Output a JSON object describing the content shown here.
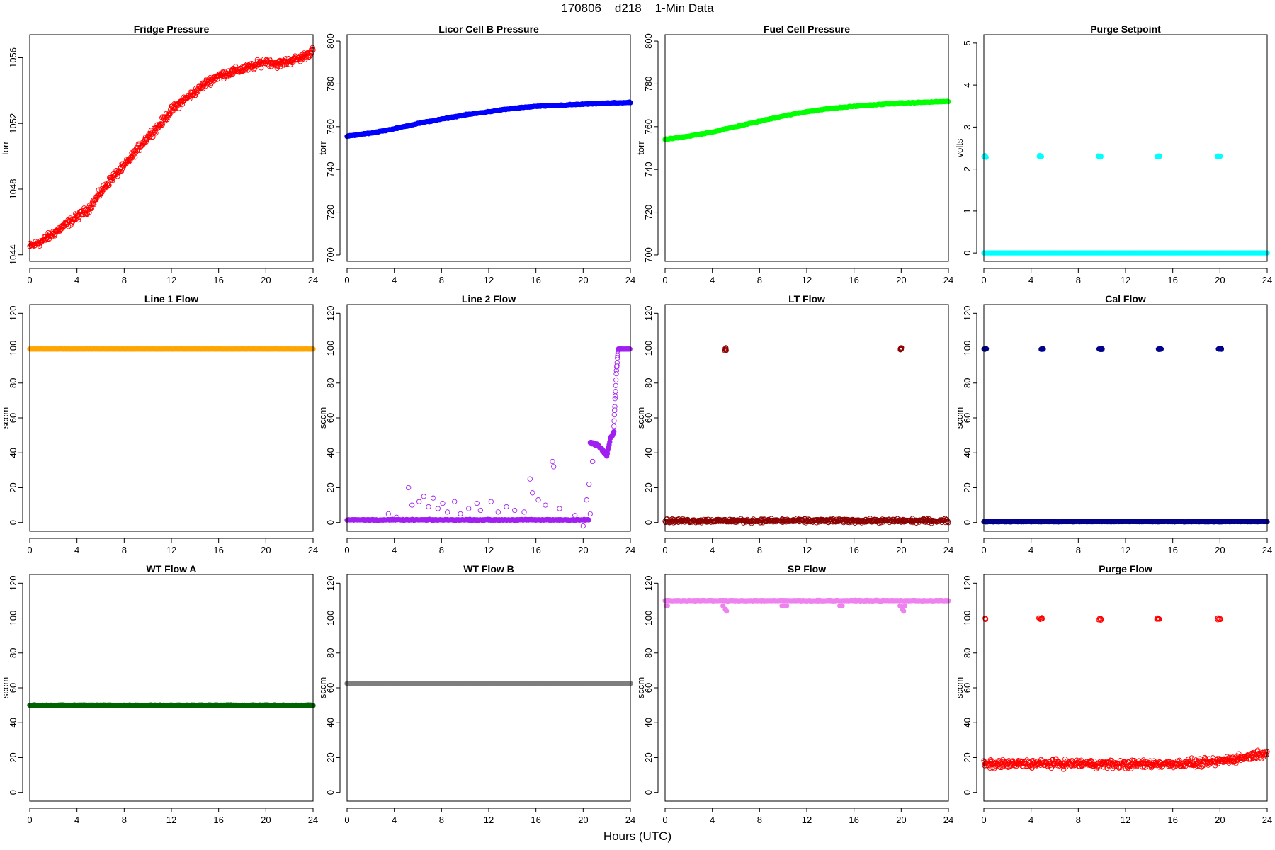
{
  "figure": {
    "title": "170806    d218    1-Min Data",
    "xlabel": "Hours (UTC)"
  },
  "chart_data": [
    {
      "type": "scatter",
      "title": "Fridge Pressure",
      "ylabel": "torr",
      "color": "#ff0000",
      "xlim": [
        0,
        24
      ],
      "ylim": [
        1043.6,
        1057.4
      ],
      "xticks": [
        0,
        4,
        8,
        12,
        16,
        20,
        24
      ],
      "yticks": [
        1044,
        1048,
        1052,
        1056
      ],
      "groups": [
        {
          "kind": "curve",
          "points": [
            [
              0,
              1044.5
            ],
            [
              1,
              1044.8
            ],
            [
              2,
              1045.3
            ],
            [
              3,
              1045.8
            ],
            [
              4,
              1046.3
            ],
            [
              5,
              1046.8
            ],
            [
              6,
              1047.8
            ],
            [
              7,
              1048.7
            ],
            [
              8,
              1049.4
            ],
            [
              9,
              1050.3
            ],
            [
              10,
              1051.2
            ],
            [
              11,
              1051.9
            ],
            [
              12,
              1052.8
            ],
            [
              13,
              1053.4
            ],
            [
              14,
              1053.9
            ],
            [
              15,
              1054.5
            ],
            [
              16,
              1054.9
            ],
            [
              17,
              1055.1
            ],
            [
              18,
              1055.3
            ],
            [
              19,
              1055.5
            ],
            [
              20,
              1055.8
            ],
            [
              21,
              1055.6
            ],
            [
              22,
              1055.8
            ],
            [
              23,
              1056.0
            ],
            [
              24,
              1056.4
            ]
          ],
          "noise": 0.35,
          "open": true,
          "step": 0.04
        }
      ]
    },
    {
      "type": "scatter",
      "title": "Licor Cell B Pressure",
      "ylabel": "torr",
      "color": "#0000ff",
      "xlim": [
        0,
        24
      ],
      "ylim": [
        697,
        803
      ],
      "xticks": [
        0,
        4,
        8,
        12,
        16,
        20,
        24
      ],
      "yticks": [
        700,
        720,
        740,
        760,
        780,
        800
      ],
      "groups": [
        {
          "kind": "curve",
          "points": [
            [
              0,
              755.5
            ],
            [
              2,
              757
            ],
            [
              4,
              759
            ],
            [
              6,
              761.5
            ],
            [
              8,
              763.5
            ],
            [
              10,
              765.5
            ],
            [
              12,
              767
            ],
            [
              14,
              768.5
            ],
            [
              16,
              769.5
            ],
            [
              18,
              770
            ],
            [
              20,
              770.5
            ],
            [
              22,
              771
            ],
            [
              24,
              771.3
            ]
          ],
          "noise": 0.3,
          "open": false,
          "step": 0.08
        }
      ]
    },
    {
      "type": "scatter",
      "title": "Fuel Cell Pressure",
      "ylabel": "torr",
      "color": "#00ff00",
      "xlim": [
        0,
        24
      ],
      "ylim": [
        697,
        803
      ],
      "xticks": [
        0,
        4,
        8,
        12,
        16,
        20,
        24
      ],
      "yticks": [
        700,
        720,
        740,
        760,
        780,
        800
      ],
      "groups": [
        {
          "kind": "curve",
          "points": [
            [
              0,
              754
            ],
            [
              2,
              755.5
            ],
            [
              4,
              757.5
            ],
            [
              6,
              760
            ],
            [
              8,
              762.5
            ],
            [
              10,
              765
            ],
            [
              12,
              767
            ],
            [
              14,
              768.5
            ],
            [
              16,
              769.5
            ],
            [
              18,
              770.3
            ],
            [
              20,
              771
            ],
            [
              22,
              771.4
            ],
            [
              24,
              771.8
            ]
          ],
          "noise": 0.3,
          "open": false,
          "step": 0.08
        }
      ]
    },
    {
      "type": "scatter",
      "title": "Purge Setpoint",
      "ylabel": "volts",
      "color": "#00ffff",
      "xlim": [
        0,
        24
      ],
      "ylim": [
        -0.2,
        5.2
      ],
      "xticks": [
        0,
        4,
        8,
        12,
        16,
        20,
        24
      ],
      "yticks": [
        0,
        1,
        2,
        3,
        4,
        5
      ],
      "groups": [
        {
          "kind": "curve",
          "points": [
            [
              0,
              0
            ],
            [
              24,
              0
            ]
          ],
          "noise": 0.0,
          "open": false,
          "step": 0.08
        },
        {
          "kind": "cluster",
          "x": [
            0.1,
            4.8,
            9.8,
            14.8,
            19.9
          ],
          "y": 2.3,
          "spread": 0.25,
          "noise": 0.03,
          "open": false
        }
      ]
    },
    {
      "type": "scatter",
      "title": "Line 1 Flow",
      "ylabel": "sccm",
      "color": "#ffa500",
      "xlim": [
        0,
        24
      ],
      "ylim": [
        -5,
        125
      ],
      "xticks": [
        0,
        4,
        8,
        12,
        16,
        20,
        24
      ],
      "yticks": [
        0,
        20,
        40,
        60,
        80,
        100,
        120
      ],
      "groups": [
        {
          "kind": "curve",
          "points": [
            [
              0,
              99.5
            ],
            [
              24,
              99.5
            ]
          ],
          "noise": 0.05,
          "open": false,
          "step": 0.08
        }
      ]
    },
    {
      "type": "scatter",
      "title": "Line 2 Flow",
      "ylabel": "sccm",
      "color": "#a020f0",
      "xlim": [
        0,
        24
      ],
      "ylim": [
        -5,
        125
      ],
      "xticks": [
        0,
        4,
        8,
        12,
        16,
        20,
        24
      ],
      "yticks": [
        0,
        20,
        40,
        60,
        80,
        100,
        120
      ],
      "groups": [
        {
          "kind": "curve",
          "points": [
            [
              0,
              1.5
            ],
            [
              20.5,
              1.5
            ]
          ],
          "noise": 0.4,
          "open": false,
          "step": 0.08
        },
        {
          "kind": "curve",
          "points": [
            [
              20.6,
              46
            ],
            [
              21.3,
              44
            ],
            [
              21.8,
              40
            ],
            [
              22.0,
              38
            ],
            [
              22.3,
              48
            ],
            [
              22.6,
              52
            ]
          ],
          "noise": 1.0,
          "open": false,
          "step": 0.05
        },
        {
          "kind": "curve",
          "points": [
            [
              22.6,
              55
            ],
            [
              22.7,
              70
            ],
            [
              22.8,
              85
            ],
            [
              22.9,
              95
            ],
            [
              23.0,
              99.5
            ]
          ],
          "noise": 2.0,
          "open": true,
          "step": 0.02
        },
        {
          "kind": "curve",
          "points": [
            [
              23.0,
              99.5
            ],
            [
              24,
              99.5
            ]
          ],
          "noise": 0.1,
          "open": false,
          "step": 0.05
        },
        {
          "kind": "points",
          "values": [
            [
              3.5,
              5
            ],
            [
              4.2,
              3
            ],
            [
              5.2,
              20
            ],
            [
              5.5,
              10
            ],
            [
              6.1,
              12
            ],
            [
              6.5,
              15
            ],
            [
              6.9,
              9
            ],
            [
              7.3,
              14
            ],
            [
              7.7,
              8
            ],
            [
              8.1,
              11
            ],
            [
              8.5,
              6
            ],
            [
              9.1,
              12
            ],
            [
              9.6,
              5
            ],
            [
              10.3,
              8
            ],
            [
              11.0,
              11
            ],
            [
              11.3,
              7
            ],
            [
              12.2,
              12
            ],
            [
              12.8,
              6
            ],
            [
              13.5,
              9
            ],
            [
              14.2,
              7
            ],
            [
              15.0,
              6
            ],
            [
              15.5,
              25
            ],
            [
              15.7,
              17
            ],
            [
              16.2,
              13
            ],
            [
              16.8,
              10
            ],
            [
              17.4,
              35
            ],
            [
              17.5,
              32
            ],
            [
              18.0,
              8
            ],
            [
              19.3,
              4
            ],
            [
              20.0,
              -2
            ],
            [
              20.3,
              13
            ],
            [
              20.5,
              22
            ],
            [
              20.6,
              5
            ],
            [
              20.8,
              35
            ]
          ],
          "open": true
        }
      ]
    },
    {
      "type": "scatter",
      "title": "LT Flow",
      "ylabel": "sccm",
      "color": "#8b0000",
      "xlim": [
        0,
        24
      ],
      "ylim": [
        -5,
        125
      ],
      "xticks": [
        0,
        4,
        8,
        12,
        16,
        20,
        24
      ],
      "yticks": [
        0,
        20,
        40,
        60,
        80,
        100,
        120
      ],
      "groups": [
        {
          "kind": "curve",
          "points": [
            [
              0,
              1
            ],
            [
              24,
              1
            ]
          ],
          "noise": 1.6,
          "open": true,
          "step": 0.04
        },
        {
          "kind": "cluster",
          "x": [
            5.1,
            20.0
          ],
          "y": 99.5,
          "spread": 0.15,
          "noise": 1.5,
          "open": true
        }
      ]
    },
    {
      "type": "scatter",
      "title": "Cal Flow",
      "ylabel": "sccm",
      "color": "#00008b",
      "xlim": [
        0,
        24
      ],
      "ylim": [
        -5,
        125
      ],
      "xticks": [
        0,
        4,
        8,
        12,
        16,
        20,
        24
      ],
      "yticks": [
        0,
        20,
        40,
        60,
        80,
        100,
        120
      ],
      "groups": [
        {
          "kind": "curve",
          "points": [
            [
              0,
              0.5
            ],
            [
              24,
              0.5
            ]
          ],
          "noise": 0.2,
          "open": false,
          "step": 0.08
        },
        {
          "kind": "cluster",
          "x": [
            0.1,
            4.9,
            9.9,
            14.9,
            20.0
          ],
          "y": 99.5,
          "spread": 0.3,
          "noise": 0.3,
          "open": false
        }
      ]
    },
    {
      "type": "scatter",
      "title": "WT Flow A",
      "ylabel": "sccm",
      "color": "#006400",
      "xlim": [
        0,
        24
      ],
      "ylim": [
        -5,
        125
      ],
      "xticks": [
        0,
        4,
        8,
        12,
        16,
        20,
        24
      ],
      "yticks": [
        0,
        20,
        40,
        60,
        80,
        100,
        120
      ],
      "groups": [
        {
          "kind": "curve",
          "points": [
            [
              0,
              50
            ],
            [
              24,
              50
            ]
          ],
          "noise": 0.3,
          "open": false,
          "step": 0.06
        }
      ]
    },
    {
      "type": "scatter",
      "title": "WT Flow B",
      "ylabel": "sccm",
      "color": "#7f7f7f",
      "xlim": [
        0,
        24
      ],
      "ylim": [
        -5,
        125
      ],
      "xticks": [
        0,
        4,
        8,
        12,
        16,
        20,
        24
      ],
      "yticks": [
        0,
        20,
        40,
        60,
        80,
        100,
        120
      ],
      "groups": [
        {
          "kind": "curve",
          "points": [
            [
              0,
              62.5
            ],
            [
              24,
              62.5
            ]
          ],
          "noise": 0.05,
          "open": false,
          "step": 0.08
        }
      ]
    },
    {
      "type": "scatter",
      "title": "SP Flow",
      "ylabel": "sccm",
      "color": "#ee82ee",
      "xlim": [
        0,
        24
      ],
      "ylim": [
        -5,
        125
      ],
      "xticks": [
        0,
        4,
        8,
        12,
        16,
        20,
        24
      ],
      "yticks": [
        0,
        20,
        40,
        60,
        80,
        100,
        120
      ],
      "groups": [
        {
          "kind": "curve",
          "points": [
            [
              0,
              110
            ],
            [
              24,
              110
            ]
          ],
          "noise": 0.3,
          "open": false,
          "step": 0.08
        },
        {
          "kind": "points",
          "values": [
            [
              0.1,
              107
            ],
            [
              0.2,
              107
            ],
            [
              4.9,
              107
            ],
            [
              5.1,
              105
            ],
            [
              5.2,
              104
            ],
            [
              9.9,
              107
            ],
            [
              10.1,
              107
            ],
            [
              10.3,
              107
            ],
            [
              14.8,
              107
            ],
            [
              15.0,
              107
            ],
            [
              19.9,
              107
            ],
            [
              20.1,
              105
            ],
            [
              20.2,
              104
            ],
            [
              20.3,
              107
            ]
          ],
          "open": false
        }
      ]
    },
    {
      "type": "scatter",
      "title": "Purge Flow",
      "ylabel": "sccm",
      "color": "#ff0000",
      "xlim": [
        0,
        24
      ],
      "ylim": [
        -5,
        125
      ],
      "xticks": [
        0,
        4,
        8,
        12,
        16,
        20,
        24
      ],
      "yticks": [
        0,
        20,
        40,
        60,
        80,
        100,
        120
      ],
      "groups": [
        {
          "kind": "curve",
          "points": [
            [
              0,
              16
            ],
            [
              4,
              16.5
            ],
            [
              8,
              16.5
            ],
            [
              12,
              16
            ],
            [
              16,
              16.5
            ],
            [
              19,
              17
            ],
            [
              20,
              18
            ],
            [
              22,
              20
            ],
            [
              24,
              23
            ]
          ],
          "noise": 3.5,
          "open": true,
          "step": 0.04
        },
        {
          "kind": "cluster",
          "x": [
            0.1,
            4.8,
            9.8,
            14.8,
            19.9
          ],
          "y": 99.5,
          "spread": 0.3,
          "noise": 1.0,
          "open": true
        }
      ]
    }
  ]
}
